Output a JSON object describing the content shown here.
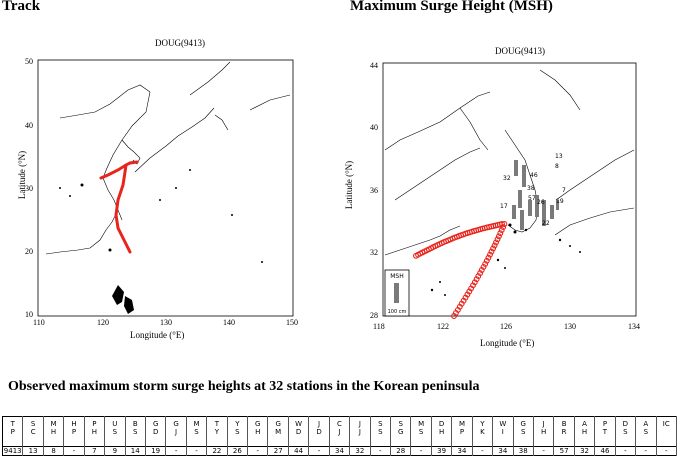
{
  "headers": {
    "track": "Track",
    "msh": "Maximum Surge Height (MSH)"
  },
  "left_map": {
    "title": "DOUG(9413)",
    "xlabel": "Longitude (°E)",
    "ylabel": "Latitude (°N)",
    "xticks": [
      "110",
      "120",
      "130",
      "140",
      "150"
    ],
    "yticks": [
      "50",
      "40",
      "30",
      "20",
      "10"
    ]
  },
  "right_map": {
    "title": "DOUG(9413)",
    "xlabel": "Longitude (°E)",
    "ylabel": "Latitude (°N)",
    "xticks": [
      "118",
      "122",
      "126",
      "130",
      "134"
    ],
    "yticks": [
      "44",
      "40",
      "36",
      "32",
      "28"
    ],
    "legend_title": "MSH",
    "legend_scale": "100 cm",
    "station_labels": [
      "13",
      "8",
      "32",
      "38",
      "46",
      "57",
      "17",
      "26",
      "19",
      "22",
      "7"
    ]
  },
  "colors": {
    "track": "#e8241c",
    "surge_bar": "#7a7a7a",
    "coast": "#000000"
  },
  "observations": {
    "title": "Observed maximum storm surge heights at 32 stations in the Korean peninsula",
    "station_codes": [
      [
        "T",
        "P"
      ],
      [
        "S",
        "C"
      ],
      [
        "M",
        "H"
      ],
      [
        "H",
        "P"
      ],
      [
        "P",
        "H"
      ],
      [
        "U",
        "S"
      ],
      [
        "B",
        "S"
      ],
      [
        "G",
        "D"
      ],
      [
        "G",
        "J"
      ],
      [
        "M",
        "S"
      ],
      [
        "T",
        "Y"
      ],
      [
        "Y",
        "S"
      ],
      [
        "G",
        "H"
      ],
      [
        "G",
        "M"
      ],
      [
        "W",
        "D"
      ],
      [
        "J",
        "D"
      ],
      [
        "C",
        "J"
      ],
      [
        "J",
        "J"
      ],
      [
        "S",
        "S"
      ],
      [
        "S",
        "G"
      ],
      [
        "M",
        "S"
      ],
      [
        "D",
        "H"
      ],
      [
        "M",
        "P"
      ],
      [
        "Y",
        "K"
      ],
      [
        "W",
        "I"
      ],
      [
        "G",
        "S"
      ],
      [
        "J",
        "H"
      ],
      [
        "B",
        "R"
      ],
      [
        "A",
        "H"
      ],
      [
        "P",
        "T"
      ],
      [
        "D",
        "S"
      ],
      [
        "A",
        "S"
      ],
      [
        "IC"
      ]
    ],
    "values": [
      "9413",
      "13",
      "8",
      "-",
      "7",
      "9",
      "14",
      "19",
      "-",
      "-",
      "22",
      "26",
      "-",
      "27",
      "44",
      "-",
      "34",
      "32",
      "-",
      "28",
      "-",
      "39",
      "34",
      "-",
      "34",
      "38",
      "-",
      "57",
      "32",
      "46",
      "-",
      "-",
      "-"
    ]
  }
}
